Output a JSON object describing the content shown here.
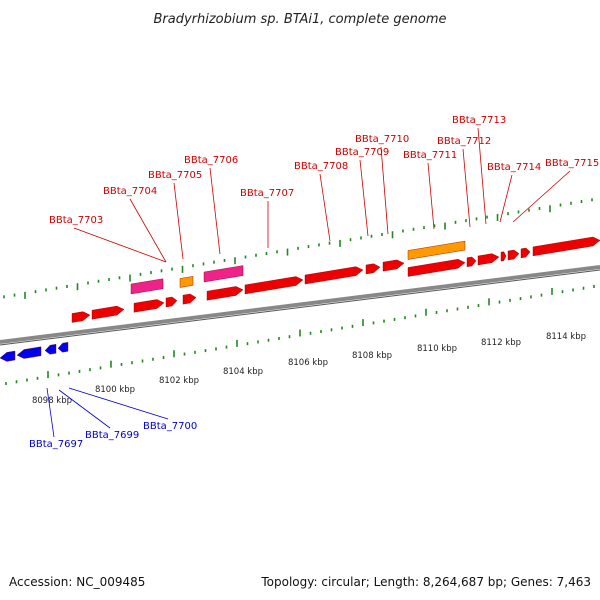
{
  "title": "Bradyrhizobium sp. BTAi1, complete genome",
  "footer": {
    "accession": "Accession: NC_009485",
    "topology": "Topology: circular; Length: 8,264,687 bp; Genes: 7,463"
  },
  "colors": {
    "forward_label": "#cc0000",
    "reverse_label": "#0000cc",
    "cds_forward": "#ee0000",
    "cds_reverse": "#0000ee",
    "rrna": "#ee2288",
    "trna": "#ff9900",
    "ticks": "#228822",
    "backbone": "#888888"
  },
  "ruler": [
    "8098 kbp",
    "8100 kbp",
    "8102 kbp",
    "8104 kbp",
    "8106 kbp",
    "8108 kbp",
    "8110 kbp",
    "8112 kbp",
    "8114 kbp"
  ],
  "forward_genes": [
    "BBta_7703",
    "BBta_7704",
    "BBta_7705",
    "BBta_7706",
    "BBta_7707",
    "BBta_7708",
    "BBta_7709",
    "BBta_7710",
    "BBta_7711",
    "BBta_7712",
    "BBta_7713",
    "BBta_7714",
    "BBta_7715"
  ],
  "reverse_genes": [
    "BBta_7697",
    "BBta_7699",
    "BBta_7700"
  ]
}
